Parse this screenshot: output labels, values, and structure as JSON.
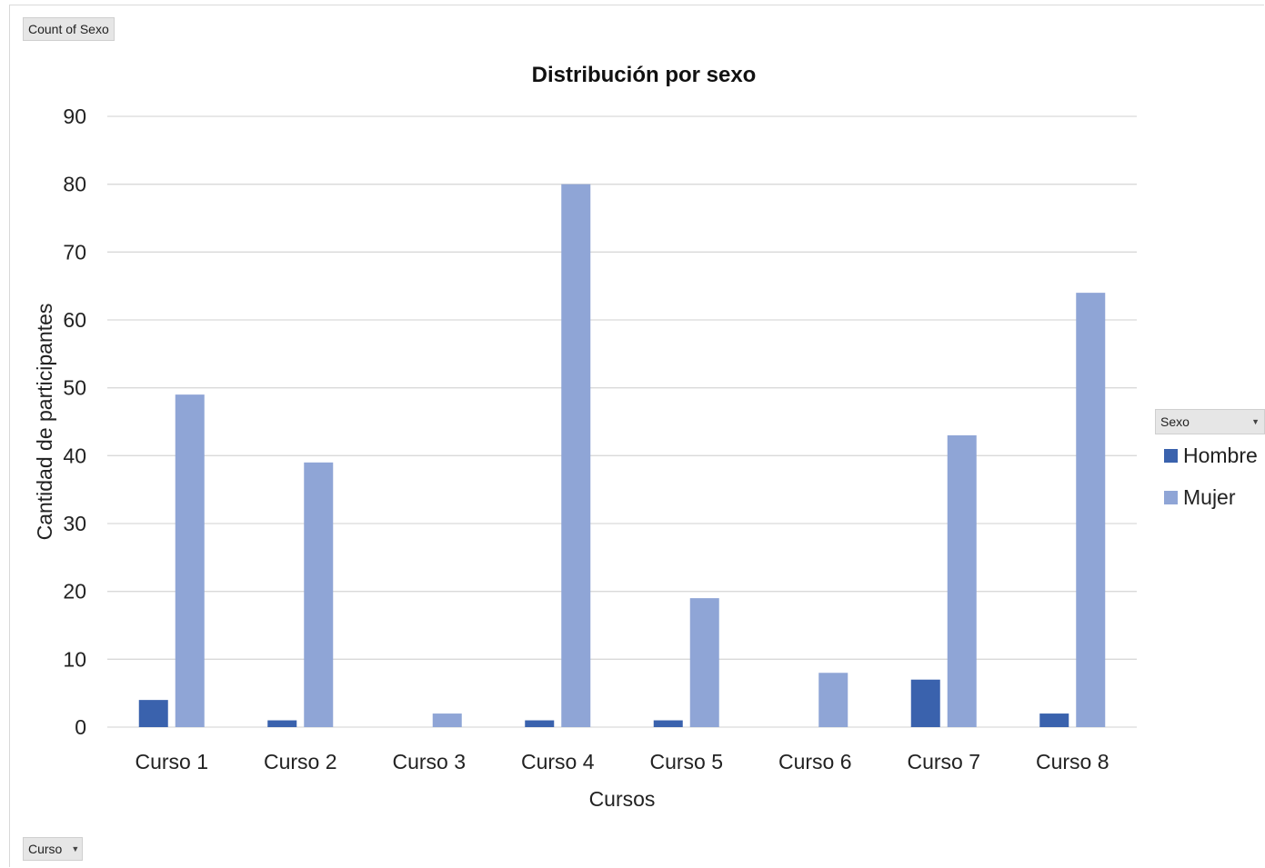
{
  "pivot": {
    "value_field": "Count of Sexo",
    "row_field": "Curso",
    "legend_field": "Sexo"
  },
  "colors": {
    "Hombre": "#3a62ad",
    "Mujer": "#8fa5d6",
    "grid": "#d9d9d9"
  },
  "chart_data": {
    "type": "bar",
    "title": "Distribución por sexo",
    "xlabel": "Cursos",
    "ylabel": "Cantidad de participantes",
    "categories": [
      "Curso 1",
      "Curso 2",
      "Curso 3",
      "Curso 4",
      "Curso 5",
      "Curso 6",
      "Curso 7",
      "Curso 8"
    ],
    "series": [
      {
        "name": "Hombre",
        "values": [
          4,
          1,
          0,
          1,
          1,
          0,
          7,
          2
        ]
      },
      {
        "name": "Mujer",
        "values": [
          49,
          39,
          2,
          80,
          19,
          8,
          43,
          64
        ]
      }
    ],
    "ylim": [
      0,
      90
    ],
    "yticks": [
      0,
      10,
      20,
      30,
      40,
      50,
      60,
      70,
      80,
      90
    ],
    "grid": true,
    "legend": "right"
  }
}
